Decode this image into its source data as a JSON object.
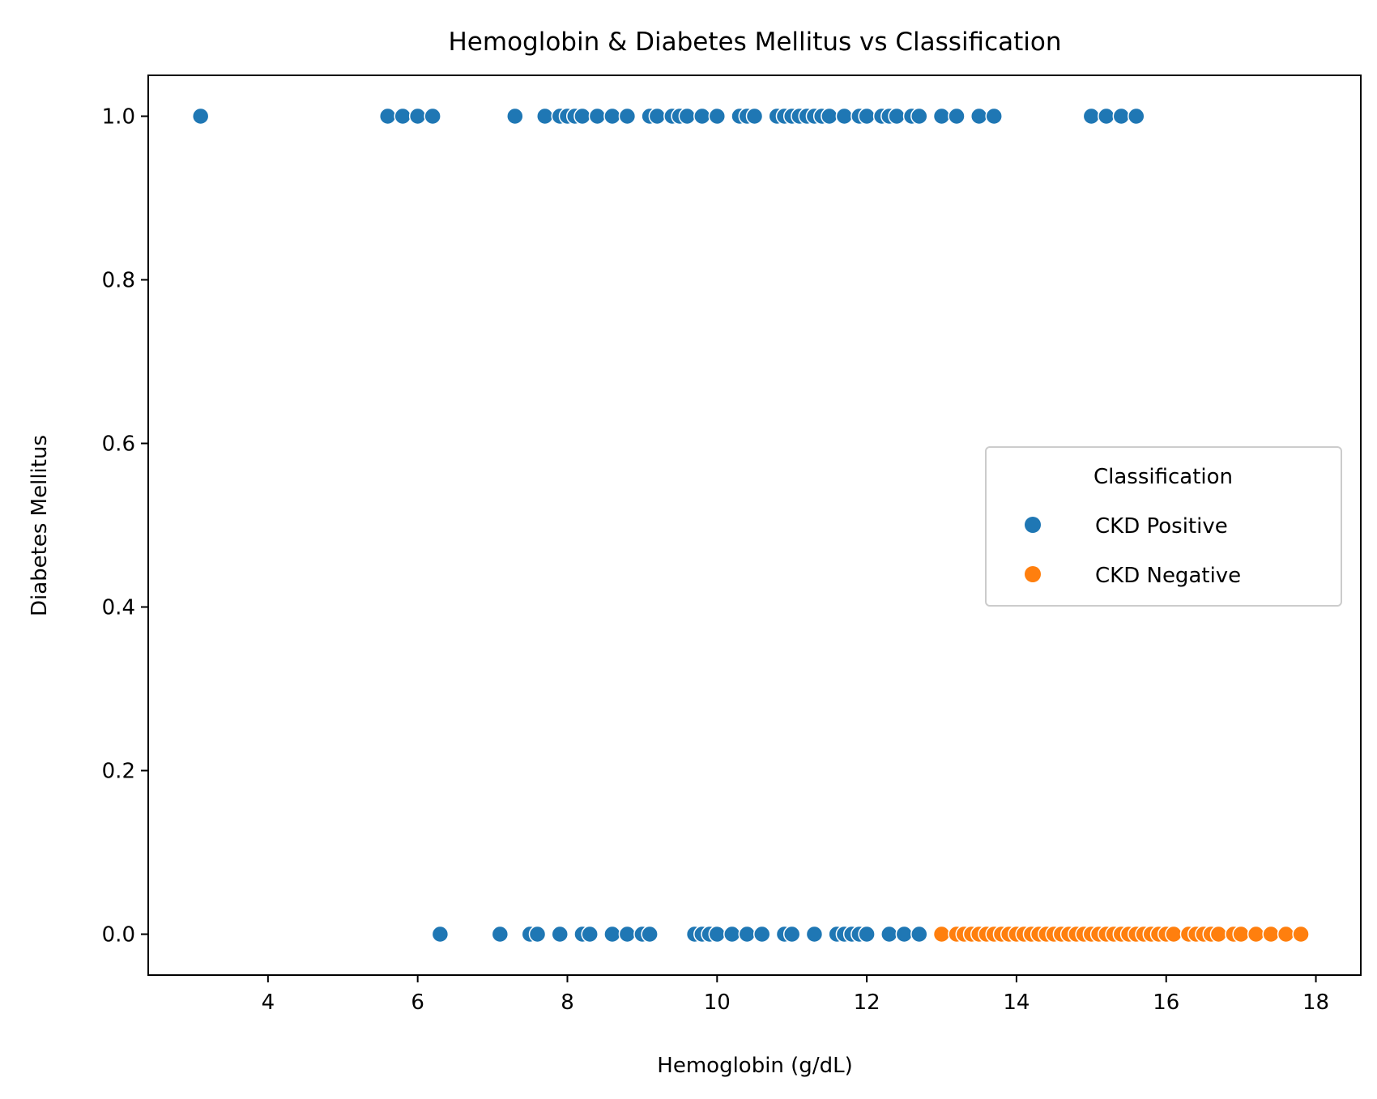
{
  "chart_data": {
    "type": "scatter",
    "title": "Hemoglobin & Diabetes Mellitus vs Classification",
    "xlabel": "Hemoglobin (g/dL)",
    "ylabel": "Diabetes Mellitus",
    "xlim": [
      2.4,
      18.6
    ],
    "ylim": [
      -0.05,
      1.05
    ],
    "xticks": [
      4,
      6,
      8,
      10,
      12,
      14,
      16,
      18
    ],
    "xtick_labels": [
      "4",
      "6",
      "8",
      "10",
      "12",
      "14",
      "16",
      "18"
    ],
    "yticks": [
      0.0,
      0.2,
      0.4,
      0.6,
      0.8,
      1.0
    ],
    "ytick_labels": [
      "0.0",
      "0.2",
      "0.4",
      "0.6",
      "0.8",
      "1.0"
    ],
    "grid": false,
    "legend": {
      "title": "Classification",
      "placement": "center-right",
      "entries": [
        "CKD Positive",
        "CKD Negative"
      ]
    },
    "series": [
      {
        "name": "CKD Positive",
        "color": "#1f77b4",
        "points": [
          [
            3.1,
            1
          ],
          [
            5.6,
            1
          ],
          [
            5.8,
            1
          ],
          [
            6.0,
            1
          ],
          [
            6.2,
            1
          ],
          [
            7.3,
            1
          ],
          [
            7.7,
            1
          ],
          [
            7.9,
            1
          ],
          [
            8.0,
            1
          ],
          [
            8.1,
            1
          ],
          [
            8.2,
            1
          ],
          [
            8.4,
            1
          ],
          [
            8.6,
            1
          ],
          [
            8.8,
            1
          ],
          [
            9.1,
            1
          ],
          [
            9.2,
            1
          ],
          [
            9.4,
            1
          ],
          [
            9.5,
            1
          ],
          [
            9.6,
            1
          ],
          [
            9.8,
            1
          ],
          [
            10.0,
            1
          ],
          [
            10.3,
            1
          ],
          [
            10.4,
            1
          ],
          [
            10.5,
            1
          ],
          [
            10.8,
            1
          ],
          [
            10.9,
            1
          ],
          [
            11.0,
            1
          ],
          [
            11.1,
            1
          ],
          [
            11.2,
            1
          ],
          [
            11.3,
            1
          ],
          [
            11.4,
            1
          ],
          [
            11.5,
            1
          ],
          [
            11.7,
            1
          ],
          [
            11.9,
            1
          ],
          [
            12.0,
            1
          ],
          [
            12.2,
            1
          ],
          [
            12.3,
            1
          ],
          [
            12.4,
            1
          ],
          [
            12.6,
            1
          ],
          [
            12.7,
            1
          ],
          [
            13.0,
            1
          ],
          [
            13.2,
            1
          ],
          [
            13.5,
            1
          ],
          [
            13.7,
            1
          ],
          [
            15.0,
            1
          ],
          [
            15.2,
            1
          ],
          [
            15.4,
            1
          ],
          [
            15.6,
            1
          ],
          [
            6.3,
            0
          ],
          [
            7.1,
            0
          ],
          [
            7.5,
            0
          ],
          [
            7.6,
            0
          ],
          [
            7.9,
            0
          ],
          [
            8.2,
            0
          ],
          [
            8.3,
            0
          ],
          [
            8.6,
            0
          ],
          [
            8.8,
            0
          ],
          [
            9.0,
            0
          ],
          [
            9.1,
            0
          ],
          [
            9.7,
            0
          ],
          [
            9.8,
            0
          ],
          [
            9.9,
            0
          ],
          [
            10.0,
            0
          ],
          [
            10.2,
            0
          ],
          [
            10.4,
            0
          ],
          [
            10.6,
            0
          ],
          [
            10.9,
            0
          ],
          [
            11.0,
            0
          ],
          [
            11.3,
            0
          ],
          [
            11.6,
            0
          ],
          [
            11.7,
            0
          ],
          [
            11.8,
            0
          ],
          [
            11.9,
            0
          ],
          [
            12.0,
            0
          ],
          [
            12.3,
            0
          ],
          [
            12.5,
            0
          ],
          [
            12.7,
            0
          ]
        ]
      },
      {
        "name": "CKD Negative",
        "color": "#ff7f0e",
        "points": [
          [
            13.0,
            0
          ],
          [
            13.2,
            0
          ],
          [
            13.3,
            0
          ],
          [
            13.4,
            0
          ],
          [
            13.5,
            0
          ],
          [
            13.6,
            0
          ],
          [
            13.7,
            0
          ],
          [
            13.8,
            0
          ],
          [
            13.9,
            0
          ],
          [
            14.0,
            0
          ],
          [
            14.1,
            0
          ],
          [
            14.2,
            0
          ],
          [
            14.3,
            0
          ],
          [
            14.4,
            0
          ],
          [
            14.5,
            0
          ],
          [
            14.6,
            0
          ],
          [
            14.7,
            0
          ],
          [
            14.8,
            0
          ],
          [
            14.9,
            0
          ],
          [
            15.0,
            0
          ],
          [
            15.1,
            0
          ],
          [
            15.2,
            0
          ],
          [
            15.3,
            0
          ],
          [
            15.4,
            0
          ],
          [
            15.5,
            0
          ],
          [
            15.6,
            0
          ],
          [
            15.7,
            0
          ],
          [
            15.8,
            0
          ],
          [
            15.9,
            0
          ],
          [
            16.0,
            0
          ],
          [
            16.1,
            0
          ],
          [
            16.3,
            0
          ],
          [
            16.4,
            0
          ],
          [
            16.5,
            0
          ],
          [
            16.6,
            0
          ],
          [
            16.7,
            0
          ],
          [
            16.9,
            0
          ],
          [
            17.0,
            0
          ],
          [
            17.2,
            0
          ],
          [
            17.4,
            0
          ],
          [
            17.6,
            0
          ],
          [
            17.8,
            0
          ]
        ]
      }
    ]
  }
}
